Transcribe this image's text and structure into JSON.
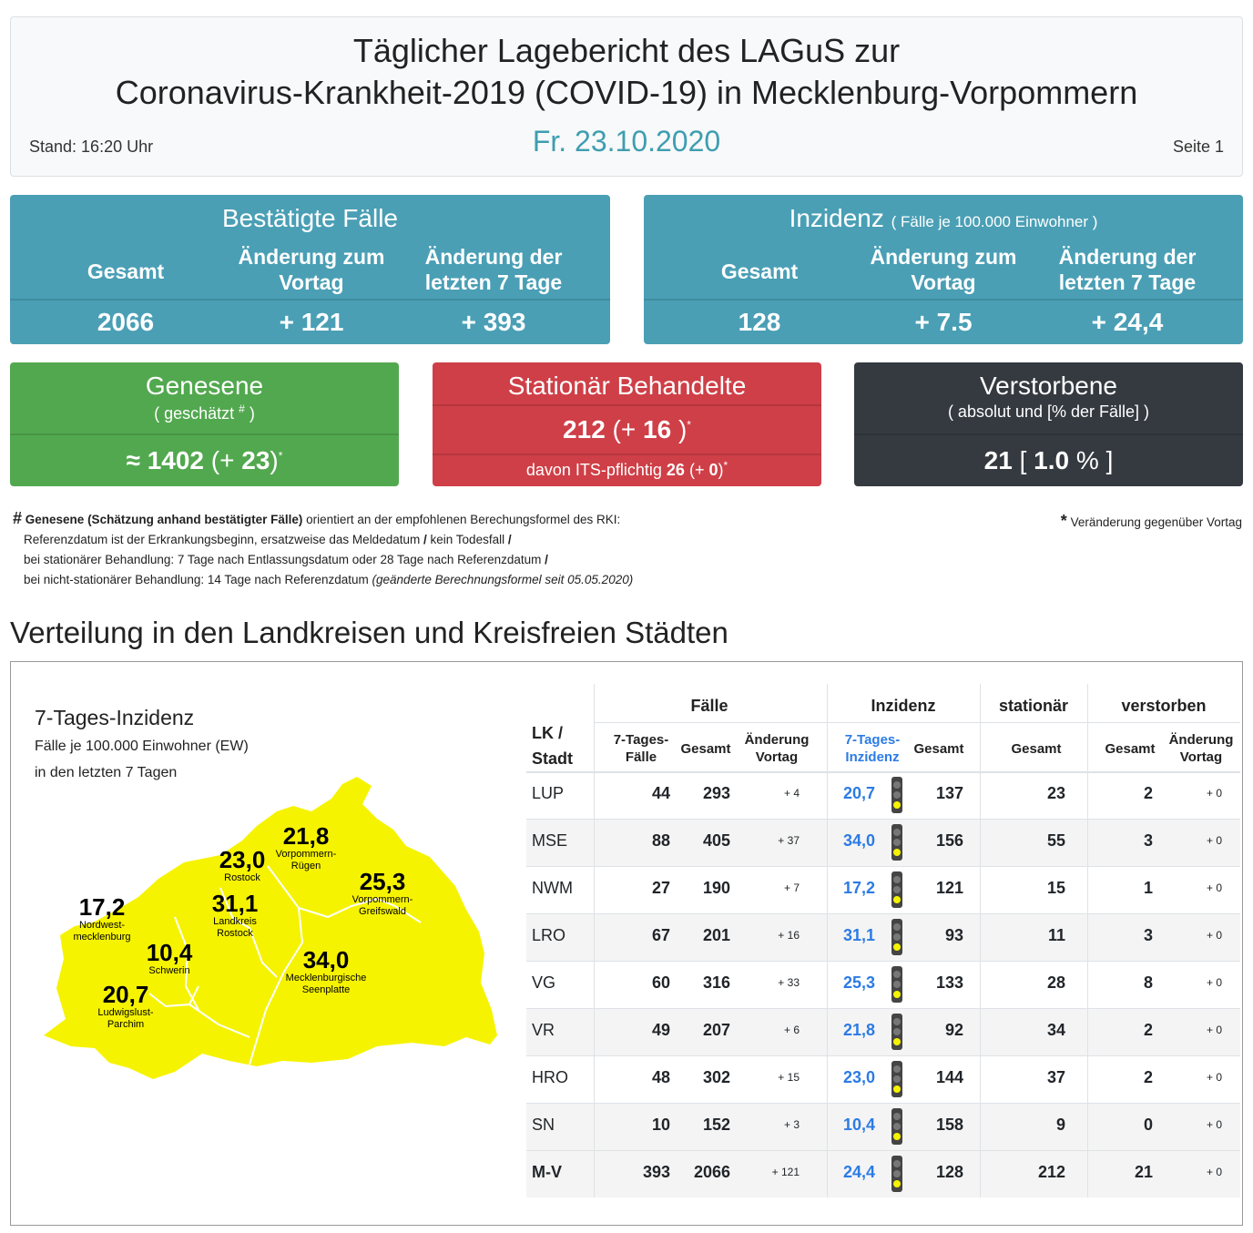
{
  "header": {
    "title_line1": "Täglicher Lagebericht des LAGuS zur",
    "title_line2": "Coronavirus-Krankheit-2019 (COVID-19) in Mecklenburg-Vorpommern",
    "date": "Fr. 23.10.2020",
    "stand": "Stand: 16:20 Uhr",
    "page": "Seite 1"
  },
  "confirmed": {
    "title": "Bestätigte Fälle",
    "col1": "Gesamt",
    "col2_l1": "Änderung zum",
    "col2_l2": "Vortag",
    "col3_l1": "Änderung der",
    "col3_l2": "letzten 7 Tage",
    "total": "2066",
    "change_day": "+ 121",
    "change_7": "+ 393"
  },
  "incidence": {
    "title": "Inzidenz",
    "subtitle": "( Fälle je 100.000 Einwohner )",
    "col1": "Gesamt",
    "col2_l1": "Änderung zum",
    "col2_l2": "Vortag",
    "col3_l1": "Änderung der",
    "col3_l2": "letzten 7 Tage",
    "total": "128",
    "change_day": "+ 7.5",
    "change_7": "+ 24,4"
  },
  "recovered": {
    "title": "Genesene",
    "subtitle": "( geschätzt",
    "hash": "#",
    "close": ")",
    "approx": "≈",
    "value": "1402",
    "change_open": "(+",
    "change": "23",
    "change_close": ")",
    "star": "*"
  },
  "hospital": {
    "title": "Stationär Behandelte",
    "value": "212",
    "change_open": "(+",
    "change": "16",
    "change_close": ")",
    "star": "*",
    "its_label": "davon ITS-pflichtig",
    "its_value": "26",
    "its_change_open": "(+",
    "its_change": "0",
    "its_change_close": ")"
  },
  "deaths": {
    "title": "Verstorbene",
    "subtitle": "( absolut und [% der Fälle] )",
    "value": "21",
    "open": "[",
    "pct": "1.0",
    "pct_sign": "%",
    "close": "]"
  },
  "notes": {
    "hash": "#",
    "bold": "Genesene (Schätzung anhand bestätigter Fälle)",
    "l1": "orientiert an der empfohlenen Berechungsformel des RKI:",
    "l2": "Referenzdatum ist der Erkrankungsbeginn, ersatzweise das Meldedatum",
    "l2b": "kein Todesfall",
    "l3": "bei stationärer Behandlung: 7 Tage nach Entlassungsdatum oder 28 Tage nach Referenzdatum",
    "l4": "bei nicht-stationärer Behandlung: 14 Tage nach Referenzdatum",
    "l4i": "(geänderte Berechnungsformel seit 05.05.2020)",
    "slash": "/",
    "star": "*",
    "star_text": "Veränderung gegenüber Vortag"
  },
  "section_title": "Verteilung in den Landkreisen und Kreisfreien Städten",
  "map": {
    "title": "7-Tages-Inzidenz",
    "sub1": "Fälle je 100.000 Einwohner (EW)",
    "sub2": "in den letzten 7 Tagen",
    "fill": "#f6f300",
    "regions": [
      {
        "value": "21,8",
        "l1": "Vorpommern-",
        "l2": "Rügen"
      },
      {
        "value": "23,0",
        "l1": "Rostock",
        "l2": ""
      },
      {
        "value": "25,3",
        "l1": "Vorpommern-",
        "l2": "Greifswald"
      },
      {
        "value": "17,2",
        "l1": "Nordwest-",
        "l2": "mecklenburg"
      },
      {
        "value": "31,1",
        "l1": "Landkreis",
        "l2": "Rostock"
      },
      {
        "value": "10,4",
        "l1": "Schwerin",
        "l2": ""
      },
      {
        "value": "34,0",
        "l1": "Mecklenburgische",
        "l2": "Seenplatte"
      },
      {
        "value": "20,7",
        "l1": "Ludwigslust-",
        "l2": "Parchim"
      }
    ]
  },
  "table": {
    "h_lk1": "LK /",
    "h_lk2": "Stadt",
    "h_faelle": "Fälle",
    "h_inzidenz": "Inzidenz",
    "h_stationaer": "stationär",
    "h_verstorben": "verstorben",
    "s_7t1": "7-Tages-",
    "s_7t2": "Fälle",
    "s_gesamt": "Gesamt",
    "s_aend1": "Änderung",
    "s_aend2": "Vortag",
    "s_7i1": "7-Tages-",
    "s_7i2": "Inzidenz",
    "rows": [
      {
        "lk": "LUP",
        "f7": "44",
        "fg": "293",
        "fa": "+ 4",
        "i7": "20,7",
        "ig": "137",
        "st": "23",
        "vg": "2",
        "va": "+ 0"
      },
      {
        "lk": "MSE",
        "f7": "88",
        "fg": "405",
        "fa": "+ 37",
        "i7": "34,0",
        "ig": "156",
        "st": "55",
        "vg": "3",
        "va": "+ 0"
      },
      {
        "lk": "NWM",
        "f7": "27",
        "fg": "190",
        "fa": "+ 7",
        "i7": "17,2",
        "ig": "121",
        "st": "15",
        "vg": "1",
        "va": "+ 0"
      },
      {
        "lk": "LRO",
        "f7": "67",
        "fg": "201",
        "fa": "+ 16",
        "i7": "31,1",
        "ig": "93",
        "st": "11",
        "vg": "3",
        "va": "+ 0"
      },
      {
        "lk": "VG",
        "f7": "60",
        "fg": "316",
        "fa": "+ 33",
        "i7": "25,3",
        "ig": "133",
        "st": "28",
        "vg": "8",
        "va": "+ 0"
      },
      {
        "lk": "VR",
        "f7": "49",
        "fg": "207",
        "fa": "+ 6",
        "i7": "21,8",
        "ig": "92",
        "st": "34",
        "vg": "2",
        "va": "+ 0"
      },
      {
        "lk": "HRO",
        "f7": "48",
        "fg": "302",
        "fa": "+ 15",
        "i7": "23,0",
        "ig": "144",
        "st": "37",
        "vg": "2",
        "va": "+ 0"
      },
      {
        "lk": "SN",
        "f7": "10",
        "fg": "152",
        "fa": "+ 3",
        "i7": "10,4",
        "ig": "158",
        "st": "9",
        "vg": "0",
        "va": "+ 0"
      },
      {
        "lk": "M-V",
        "f7": "393",
        "fg": "2066",
        "fa": "+ 121",
        "i7": "24,4",
        "ig": "128",
        "st": "212",
        "vg": "21",
        "va": "+ 0"
      }
    ]
  }
}
